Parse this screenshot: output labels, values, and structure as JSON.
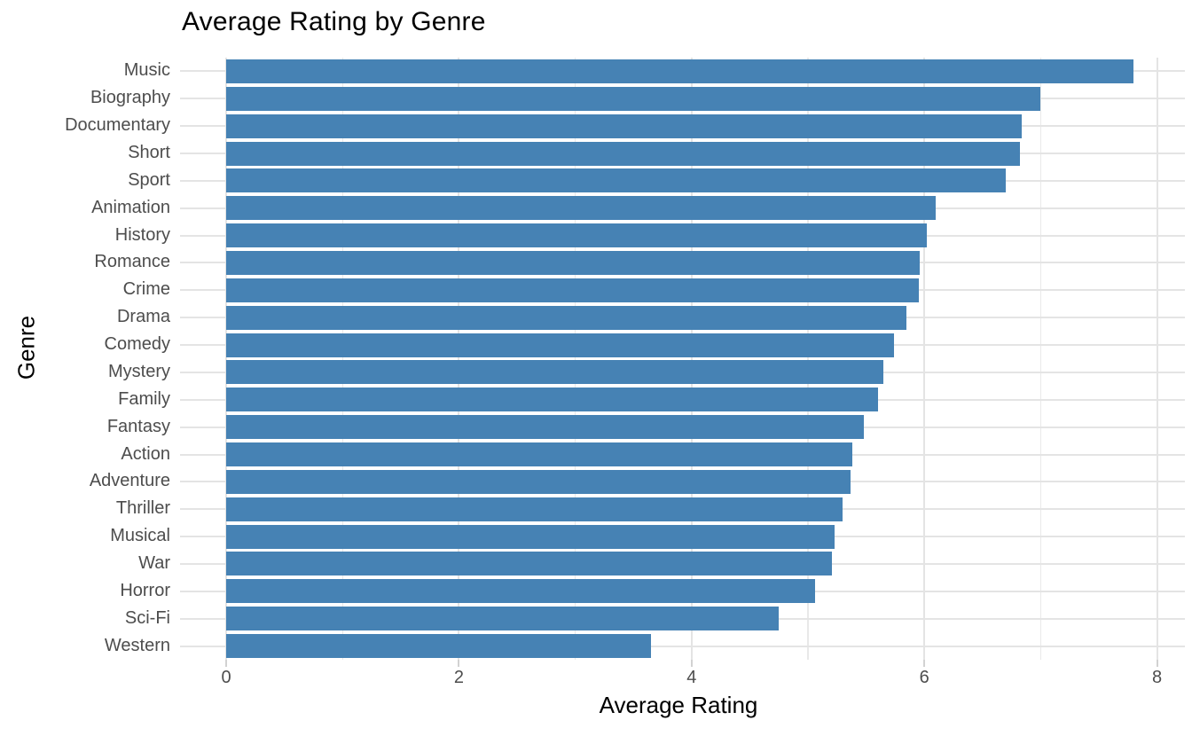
{
  "title": "Average Rating by Genre",
  "chart_data": {
    "type": "bar",
    "orientation": "horizontal",
    "title": "Average Rating by Genre",
    "xlabel": "Average Rating",
    "ylabel": "Genre",
    "categories": [
      "Music",
      "Biography",
      "Documentary",
      "Short",
      "Sport",
      "Animation",
      "History",
      "Romance",
      "Crime",
      "Drama",
      "Comedy",
      "Mystery",
      "Family",
      "Fantasy",
      "Action",
      "Adventure",
      "Thriller",
      "Musical",
      "War",
      "Horror",
      "Sci-Fi",
      "Western"
    ],
    "values": [
      7.8,
      7.0,
      6.84,
      6.82,
      6.7,
      6.1,
      6.02,
      5.96,
      5.95,
      5.85,
      5.74,
      5.65,
      5.6,
      5.48,
      5.38,
      5.37,
      5.3,
      5.23,
      5.21,
      5.06,
      4.75,
      3.65
    ],
    "x_ticks": [
      0,
      2,
      4,
      6,
      8
    ],
    "x_minor_ticks": [
      1,
      3,
      5,
      7
    ],
    "xlim": [
      0,
      8.24
    ],
    "grid": "on",
    "legend": "none",
    "bar_color": "#4682B4",
    "grid_major_color": "#e4e4e4",
    "grid_minor_color": "#e9e9e9",
    "tick_color": "#d2d2d2",
    "axis_text_color": "#4d4d4d",
    "title_color": "#000000",
    "background": "#ffffff"
  }
}
